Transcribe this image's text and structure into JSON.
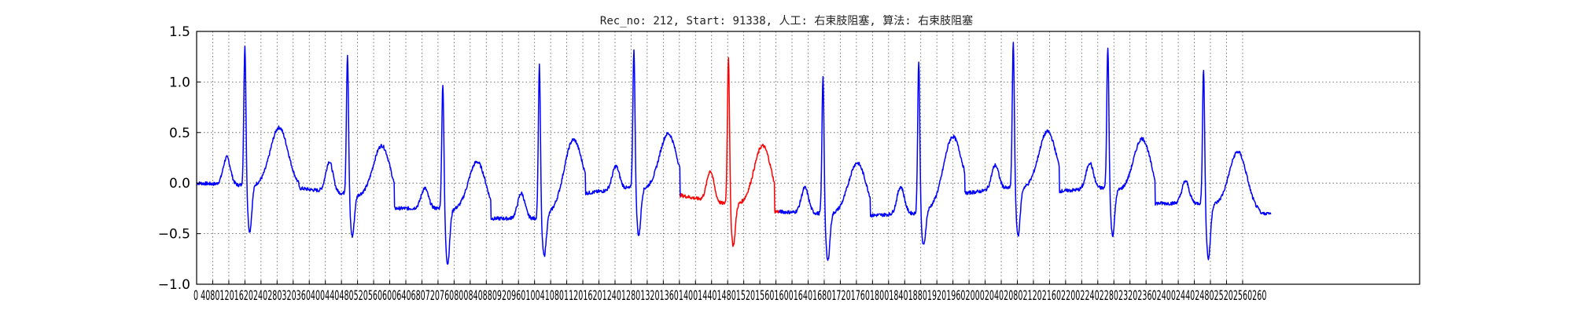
{
  "chart_data": {
    "type": "line",
    "title": "Rec_no: 212, Start: 91338, 人工: 右束肢阻塞, 算法: 右束肢阻塞",
    "xlabel": "",
    "ylabel": "",
    "xlim": [
      0,
      3040
    ],
    "ylim": [
      -1.0,
      1.5
    ],
    "grid": true,
    "grid_style": "dotted",
    "x_ticks": [
      0,
      40,
      80,
      120,
      160,
      200,
      240,
      280,
      320,
      360,
      400,
      440,
      480,
      520,
      560,
      600,
      640,
      680,
      720,
      760,
      800,
      840,
      880,
      920,
      960,
      1000,
      1040,
      1080,
      1120,
      1160,
      1200,
      1240,
      1280,
      1320,
      1360,
      1400,
      1440,
      1480,
      1520,
      1560,
      1600,
      1640,
      1680,
      1720,
      1760,
      1800,
      1840,
      1880,
      1920,
      1960,
      2000,
      2040,
      2080,
      2120,
      2160,
      2200,
      2240,
      2280,
      2320,
      2360,
      2400,
      2440,
      2480,
      2520,
      2560,
      2600
    ],
    "x_tick_labels_text": "0 4080120162024028032036040044048052056060064068072076080084088092096010041080112016201240128013201360140014401480152015601600164016801720176018001840188019201960200020402080212021602200224022802320236024002440248025202560260",
    "y_ticks": [
      -1.0,
      -0.5,
      0.0,
      0.5,
      1.0,
      1.5
    ],
    "y_tick_labels": [
      "−1.0",
      "−0.5",
      "0.0",
      "0.5",
      "1.0",
      "1.5"
    ],
    "colors": {
      "normal": "#0000ff",
      "highlight": "#ff0000",
      "grid": "#555555",
      "axes": "#000000"
    },
    "baseline": [
      [
        0,
        0.0
      ],
      [
        40,
        0.01
      ],
      [
        50,
        0.0
      ]
    ],
    "beats": [
      {
        "r": 120,
        "p": 0.25,
        "t": 0.55,
        "pre": -0.02,
        "post": -0.05,
        "r_peak": 1.38,
        "s": -0.48,
        "color": "blue"
      },
      {
        "r": 375,
        "p": 0.2,
        "t": 0.37,
        "pre": -0.1,
        "post": -0.25,
        "r_peak": 1.29,
        "s": -0.53,
        "color": "blue"
      },
      {
        "r": 612,
        "p": -0.05,
        "t": 0.21,
        "pre": -0.25,
        "post": -0.35,
        "r_peak": 1.01,
        "s": -0.8,
        "color": "blue"
      },
      {
        "r": 852,
        "p": -0.1,
        "t": 0.43,
        "pre": -0.35,
        "post": -0.1,
        "r_peak": 1.18,
        "s": -0.72,
        "color": "blue"
      },
      {
        "r": 1087,
        "p": 0.18,
        "t": 0.49,
        "pre": -0.05,
        "post": -0.12,
        "r_peak": 1.35,
        "s": -0.52,
        "color": "blue"
      },
      {
        "r": 1322,
        "p": 0.1,
        "t": 0.37,
        "pre": -0.2,
        "post": -0.28,
        "r_peak": 1.27,
        "s": -0.62,
        "color": "red"
      },
      {
        "r": 1557,
        "p": -0.05,
        "t": 0.2,
        "pre": -0.3,
        "post": -0.32,
        "r_peak": 1.07,
        "s": -0.77,
        "color": "blue"
      },
      {
        "r": 1795,
        "p": -0.03,
        "t": 0.46,
        "pre": -0.3,
        "post": -0.1,
        "r_peak": 1.23,
        "s": -0.62,
        "color": "blue"
      },
      {
        "r": 2030,
        "p": 0.19,
        "t": 0.51,
        "pre": -0.05,
        "post": -0.08,
        "r_peak": 1.41,
        "s": -0.52,
        "color": "blue"
      },
      {
        "r": 2265,
        "p": 0.21,
        "t": 0.44,
        "pre": -0.05,
        "post": -0.2,
        "r_peak": 1.37,
        "s": -0.52,
        "color": "blue"
      },
      {
        "r": 2503,
        "p": 0.02,
        "t": 0.31,
        "pre": -0.2,
        "post": -0.3,
        "r_peak": 1.16,
        "s": -0.75,
        "color": "blue"
      }
    ],
    "end_x": 2670,
    "end_y": -0.3
  }
}
